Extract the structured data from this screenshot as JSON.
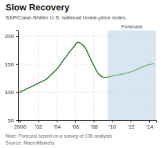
{
  "chart_data": {
    "type": "line",
    "title": "Slow Recovery",
    "subtitle": "S&P/Case-Shiller U.S. national home-price index.",
    "note": "Note: Forecast based on a survey of 106 analysts",
    "source": "Source: MacroMarkets",
    "shaded_region": {
      "label": "Forecast",
      "x": [
        2009.5,
        2014.75
      ],
      "color": "#cfe0ef"
    },
    "xlim": [
      1999.8,
      2014.75
    ],
    "ylim": [
      50,
      210
    ],
    "xticks": [
      2000,
      {
        "value": 2002,
        "label": "'02"
      },
      {
        "value": 2004,
        "label": "'04"
      },
      {
        "value": 2006,
        "label": "'06"
      },
      {
        "value": 2008,
        "label": "'08"
      },
      {
        "value": 2010,
        "label": "'10"
      },
      {
        "value": 2012,
        "label": "'12"
      },
      {
        "value": 2014,
        "label": "'14"
      }
    ],
    "yticks": [
      50,
      100,
      150,
      200
    ],
    "grid": true,
    "series": [
      {
        "color": "#2d7a2d",
        "x": [
          2000,
          2000.25,
          2000.5,
          2000.75,
          2001,
          2001.25,
          2001.5,
          2001.75,
          2002,
          2002.25,
          2002.5,
          2002.75,
          2003,
          2003.25,
          2003.5,
          2003.75,
          2004,
          2004.25,
          2004.5,
          2004.75,
          2005,
          2005.25,
          2005.5,
          2005.75,
          2006,
          2006.1,
          2006.25,
          2006.5,
          2006.75,
          2007,
          2007.25,
          2007.5,
          2007.75,
          2008,
          2008.25,
          2008.5,
          2008.75,
          2009,
          2009.25,
          2009.5
        ],
        "values": [
          100,
          102,
          104,
          106,
          108,
          110,
          112,
          114,
          116,
          118,
          120,
          122,
          125,
          129,
          133,
          137,
          141,
          146,
          152,
          158,
          163,
          169,
          174,
          179,
          184,
          187,
          189,
          188,
          185,
          181,
          174,
          165,
          156,
          148,
          140,
          133,
          129,
          127,
          126,
          127
        ]
      },
      {
        "color": "#7ab87a",
        "x": [
          2009.5,
          2009.75,
          2010,
          2010.25,
          2010.5,
          2010.75,
          2011,
          2011.25,
          2011.5,
          2011.75,
          2012,
          2012.25,
          2012.5,
          2012.75,
          2013,
          2013.25,
          2013.5,
          2013.75,
          2014,
          2014.25,
          2014.5
        ],
        "values": [
          127,
          128,
          129,
          130,
          130,
          131,
          132,
          133,
          134,
          135,
          136,
          138,
          139,
          141,
          143,
          145,
          146,
          148,
          149,
          150,
          151
        ]
      }
    ]
  }
}
